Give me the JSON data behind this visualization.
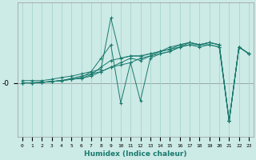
{
  "xlabel": "Humidex (Indice chaleur)",
  "bg_color": "#cceae6",
  "line_color": "#1a7a6e",
  "grid_color": "#aad4ce",
  "ytick_label": "-0",
  "xlim": [
    -0.5,
    23.5
  ],
  "ylim": [
    -12,
    18
  ],
  "lines": [
    [
      0,
      0,
      1,
      0,
      2,
      0.1,
      3,
      0.3,
      4,
      0.5,
      5,
      0.8,
      6,
      1.2,
      7,
      2.5,
      8,
      5.5,
      9,
      8.5,
      10,
      -4.5,
      11,
      4.5,
      12,
      -4.0,
      13,
      5.5,
      14,
      6.5,
      15,
      7.0,
      16,
      8.0,
      17,
      8.5,
      18,
      8.0,
      19,
      8.5,
      20,
      8.0,
      21,
      -8.5,
      22,
      8.0,
      23,
      6.5
    ],
    [
      0,
      0,
      1,
      0,
      2,
      0.1,
      3,
      0.3,
      4,
      0.5,
      5,
      0.8,
      6,
      1.0,
      7,
      1.8,
      8,
      3.5,
      9,
      5.0,
      10,
      5.5,
      11,
      6.0,
      12,
      6.0,
      13,
      6.5,
      14,
      7.0,
      15,
      7.5,
      16,
      8.5,
      17,
      9.0,
      18,
      8.5,
      19,
      9.0,
      20,
      8.5,
      21,
      -8.5,
      22,
      8.0,
      23,
      6.5
    ],
    [
      0,
      0,
      1,
      0,
      2,
      0.1,
      3,
      0.3,
      4,
      0.5,
      5,
      0.8,
      6,
      1.0,
      7,
      1.5,
      8,
      2.5,
      9,
      3.5,
      10,
      4.5,
      11,
      5.5,
      12,
      5.0,
      13,
      6.0,
      14,
      7.0,
      15,
      8.0,
      16,
      8.5,
      17,
      9.0,
      18,
      8.5,
      19,
      9.0,
      20,
      8.5,
      21,
      -8.5,
      22,
      8.0,
      23,
      6.5
    ],
    [
      0,
      0,
      1,
      0,
      2,
      0.1,
      3,
      0.3,
      4,
      0.5,
      5,
      1.0,
      6,
      1.5,
      7,
      2.0,
      8,
      2.5,
      9,
      3.5,
      10,
      4.0,
      11,
      4.5,
      12,
      5.5,
      13,
      6.0,
      14,
      6.5,
      15,
      7.0,
      16,
      8.0,
      17,
      9.0,
      18,
      8.5,
      19,
      9.0,
      20,
      8.5,
      21,
      -8.5,
      22,
      8.0,
      23,
      6.5
    ],
    [
      0,
      0.5,
      1,
      0.5,
      2,
      0.5,
      3,
      0.8,
      4,
      1.2,
      5,
      1.5,
      6,
      2.0,
      7,
      2.5,
      8,
      3.0,
      9,
      14.5,
      10,
      5.5,
      11,
      6.0,
      12,
      6.0,
      13,
      6.5,
      14,
      7.0,
      15,
      7.5,
      16,
      8.0,
      17,
      8.5,
      18,
      8.5,
      19,
      8.5,
      20,
      8.0,
      21,
      -8.5,
      22,
      8.0,
      23,
      6.5
    ]
  ]
}
